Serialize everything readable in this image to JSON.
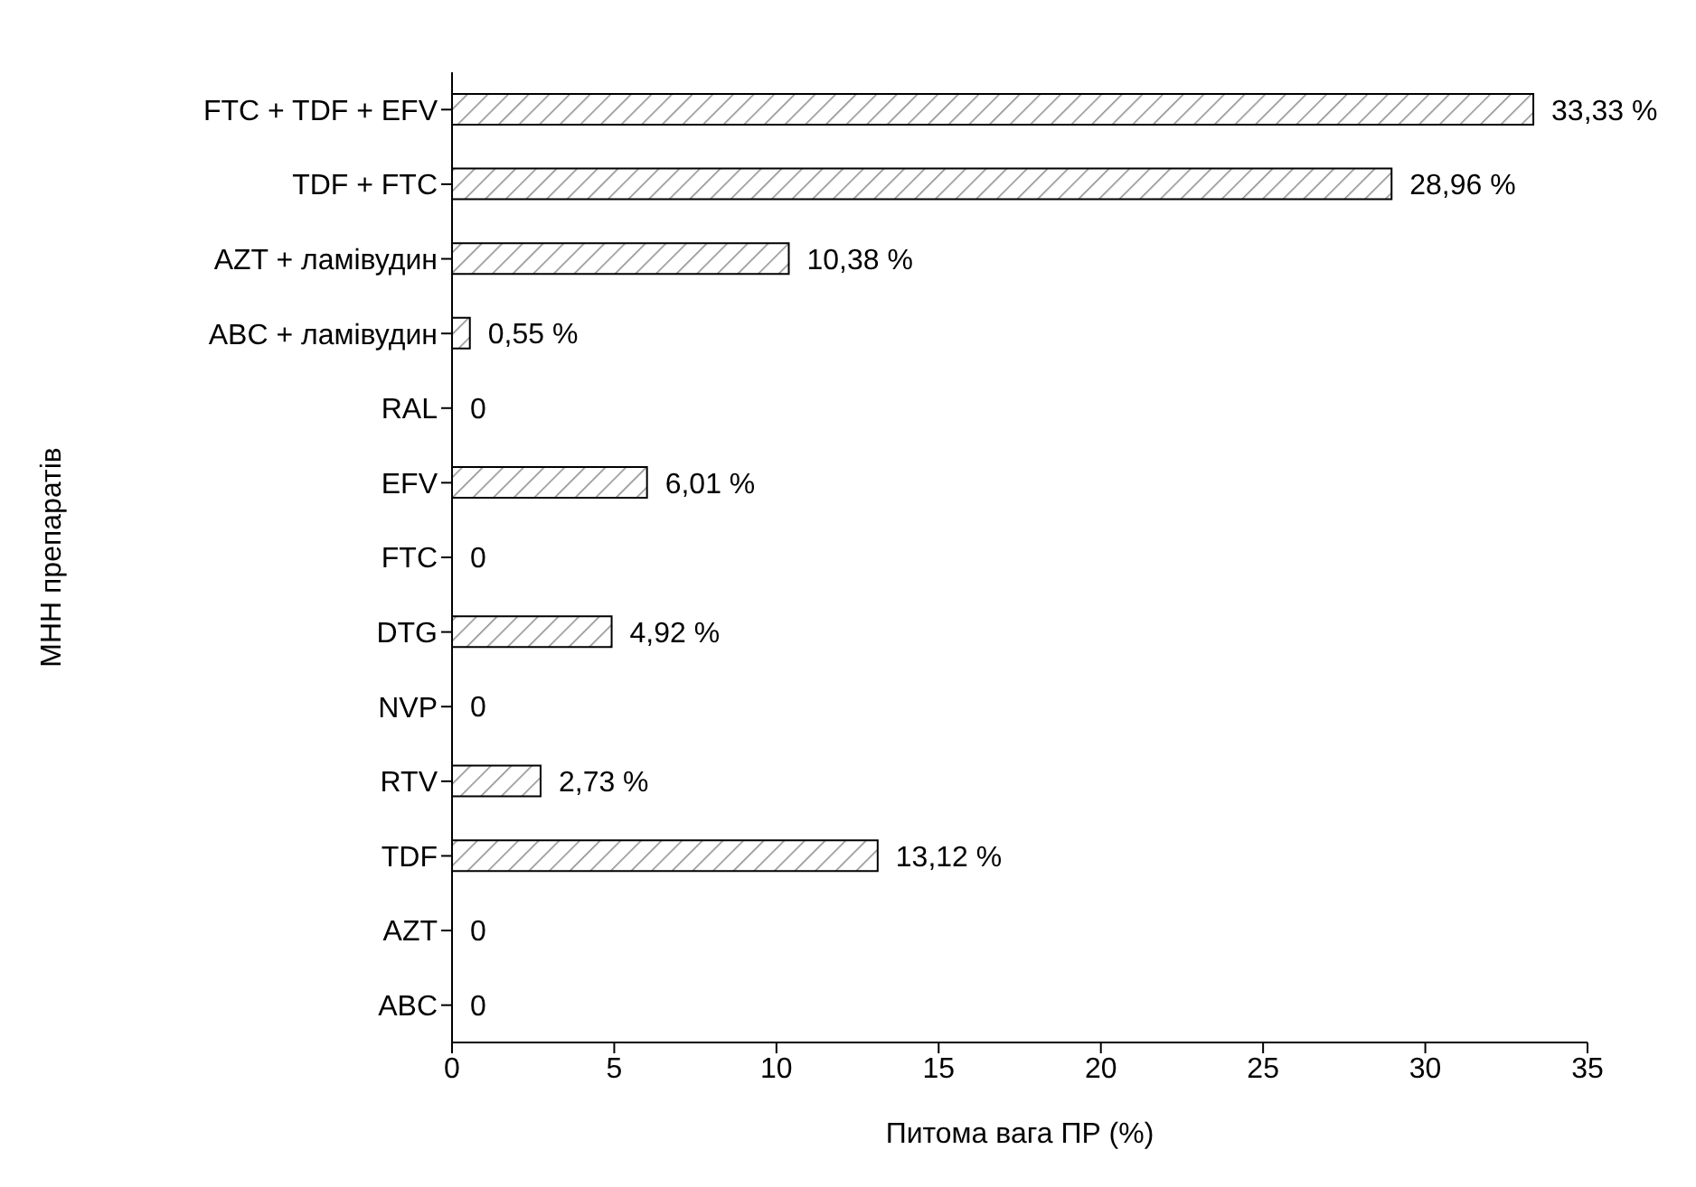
{
  "chart_data": {
    "type": "bar",
    "orientation": "horizontal",
    "xlabel": "Питома вага ПР (%)",
    "ylabel": "МНН препаратів",
    "categories": [
      "FTC + TDF + EFV",
      "TDF + FTC",
      "AZT + ламівудин",
      "ABC + ламівудин",
      "RAL",
      "EFV",
      "FTC",
      "DTG",
      "NVP",
      "RTV",
      "TDF",
      "AZT",
      "ABC"
    ],
    "values": [
      33.33,
      28.96,
      10.38,
      0.55,
      0,
      6.01,
      0,
      4.92,
      0,
      2.73,
      13.12,
      0,
      0
    ],
    "value_labels": [
      "33,33 %",
      "28,96 %",
      "10,38 %",
      "0,55 %",
      "0",
      "6,01 %",
      "0",
      "4,92 %",
      "0",
      "2,73 %",
      "13,12 %",
      "0",
      "0"
    ],
    "color": "#000000",
    "xlim": [
      0,
      35
    ],
    "xticks": [
      0,
      5,
      10,
      15,
      20,
      25,
      30,
      35
    ],
    "grid": false,
    "legend": false
  }
}
